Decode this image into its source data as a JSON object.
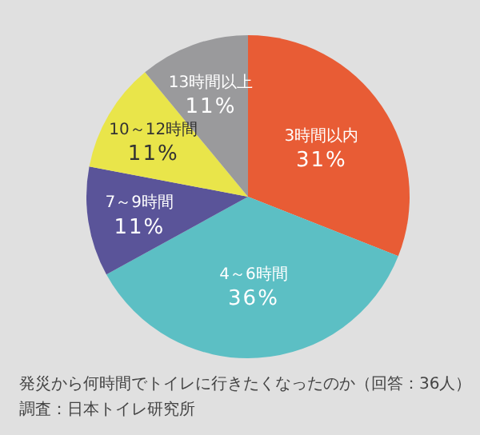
{
  "chart_data": {
    "type": "pie",
    "categories": [
      "3時間以内",
      "4～6時間",
      "7～9時間",
      "10～12時間",
      "13時間以上"
    ],
    "values": [
      31,
      36,
      11,
      11,
      11
    ],
    "value_labels": [
      "31%",
      "36%",
      "11%",
      "11%",
      "11%"
    ],
    "colors": [
      "#e85c35",
      "#5cbfc4",
      "#5a5499",
      "#e9e54a",
      "#9a9a9c"
    ],
    "annotations": [
      "発災から何時間でトイレに行きたくなったのか（回答：36人）",
      "調査：日本トイレ研究所"
    ]
  }
}
